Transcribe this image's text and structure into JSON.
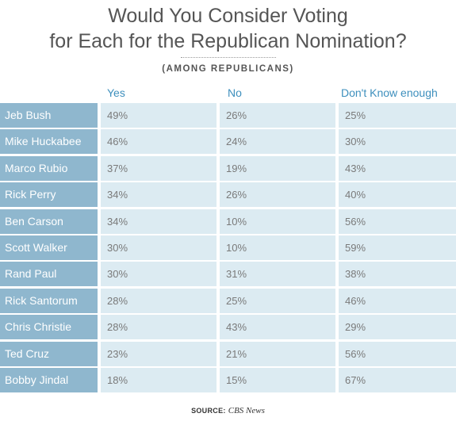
{
  "chart_data": {
    "type": "table",
    "title": [
      "Would You Consider Voting",
      "for Each for the Republican Nomination?"
    ],
    "subtitle": "(AMONG REPUBLICANS)",
    "columns": [
      "Yes",
      "No",
      "Don't Know enough"
    ],
    "rows": [
      {
        "name": "Jeb Bush",
        "values": [
          "49%",
          "26%",
          "25%"
        ]
      },
      {
        "name": "Mike Huckabee",
        "values": [
          "46%",
          "24%",
          "30%"
        ]
      },
      {
        "name": "Marco Rubio",
        "values": [
          "37%",
          "19%",
          "43%"
        ]
      },
      {
        "name": "Rick Perry",
        "values": [
          "34%",
          "26%",
          "40%"
        ]
      },
      {
        "name": "Ben Carson",
        "values": [
          "34%",
          "10%",
          "56%"
        ]
      },
      {
        "name": "Scott Walker",
        "values": [
          "30%",
          "10%",
          "59%"
        ]
      },
      {
        "name": "Rand Paul",
        "values": [
          "30%",
          "31%",
          "38%"
        ]
      },
      {
        "name": "Rick Santorum",
        "values": [
          "28%",
          "25%",
          "46%"
        ]
      },
      {
        "name": "Chris Christie",
        "values": [
          "28%",
          "43%",
          "29%"
        ]
      },
      {
        "name": "Ted Cruz",
        "values": [
          "23%",
          "21%",
          "56%"
        ]
      },
      {
        "name": "Bobby Jindal",
        "values": [
          "18%",
          "15%",
          "67%"
        ]
      }
    ],
    "source_label": "SOURCE:",
    "source_value": "CBS News",
    "colors": {
      "header_text": "#3d8fbd",
      "name_cell": "#8fb7ce",
      "value_cell": "#dcebf2"
    }
  }
}
